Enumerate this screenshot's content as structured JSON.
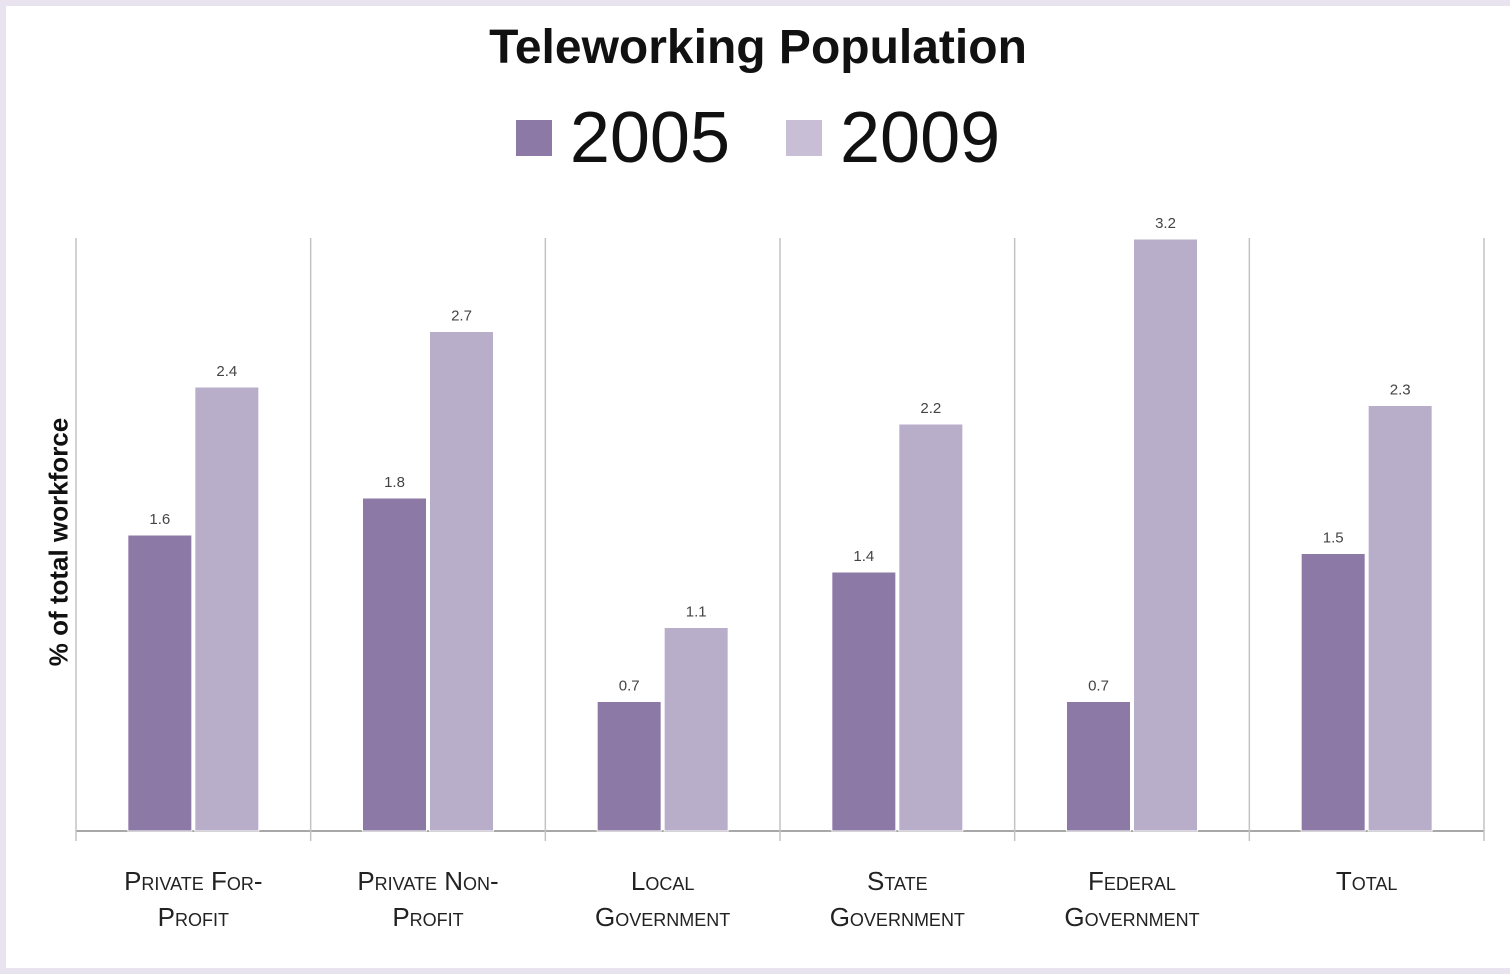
{
  "chart_data": {
    "type": "bar",
    "title": "Teleworking Population",
    "ylabel": "% of total workforce",
    "xlabel": "",
    "categories": [
      [
        "Private For-",
        "Profit"
      ],
      [
        "Private Non-",
        "Profit"
      ],
      [
        "Local",
        "Government"
      ],
      [
        "State",
        "Government"
      ],
      [
        "Federal",
        "Government"
      ],
      [
        "Total"
      ]
    ],
    "series": [
      {
        "name": "2005",
        "color": "#8c79a6",
        "values": [
          1.6,
          1.8,
          0.7,
          1.4,
          0.7,
          1.5
        ]
      },
      {
        "name": "2009",
        "color": "#b8aec9",
        "values": [
          2.4,
          2.7,
          1.1,
          2.2,
          3.2,
          2.3
        ]
      }
    ],
    "ylim": [
      0,
      3.5
    ],
    "grid": false,
    "legend": "top-center",
    "data_labels": true
  }
}
